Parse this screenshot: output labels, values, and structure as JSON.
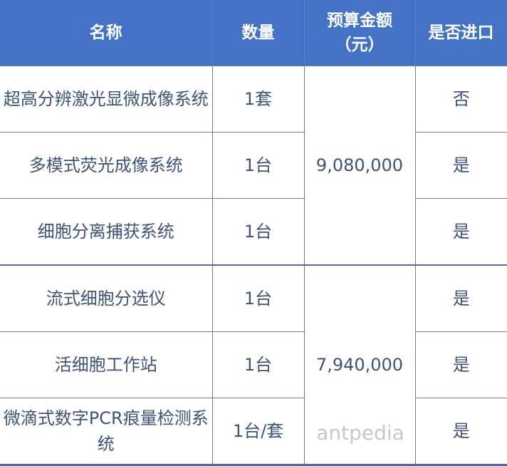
{
  "headers": [
    "名称",
    "数量",
    "预算金额（元）",
    "是否进口"
  ],
  "rows": [
    {
      "name": "超高分辨激光显微成像系统",
      "qty": "1套",
      "import": "否"
    },
    {
      "name": "多模式荧光成像系统",
      "qty": "1台",
      "import": "是"
    },
    {
      "name": "细胞分离捕获系统",
      "qty": "1台",
      "import": "是"
    },
    {
      "name": "流式细胞分选仪",
      "qty": "1台",
      "import": "是"
    },
    {
      "name": "活细胞工作站",
      "qty": "1台",
      "import": "是"
    },
    {
      "name": "微滴式数字PCR痕量检测系统",
      "qty": "1台/套",
      "import": "是"
    }
  ],
  "budgets": [
    "9,080,000",
    "7,940,000"
  ],
  "watermark": "antpedia",
  "colors": {
    "header": "#4472c4",
    "text": "#3f5277"
  }
}
